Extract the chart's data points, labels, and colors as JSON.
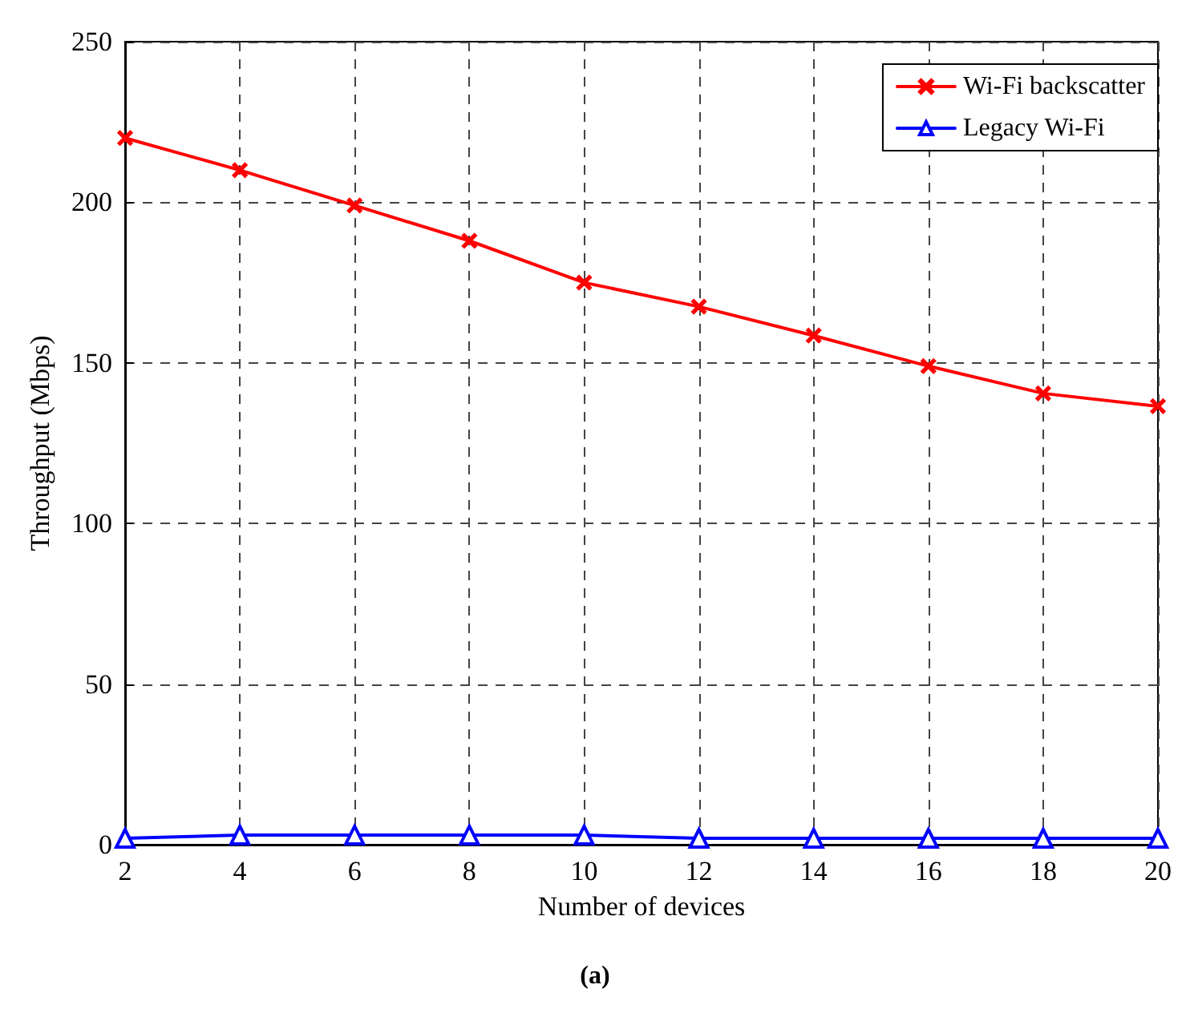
{
  "chart_data": {
    "type": "line",
    "xlabel": "Number of devices",
    "ylabel": "Throughput (Mbps)",
    "annotations": [
      "(a)"
    ],
    "x": [
      2,
      4,
      6,
      8,
      10,
      12,
      14,
      16,
      18,
      20
    ],
    "series": [
      {
        "name": "Wi-Fi backscatter",
        "color": "#ff0000",
        "marker": "cross",
        "values": [
          220,
          210,
          199,
          188,
          175,
          167.5,
          158.5,
          149,
          140.5,
          136.5
        ]
      },
      {
        "name": "Legacy Wi-Fi",
        "color": "#0000ff",
        "marker": "triangle",
        "values": [
          2,
          3,
          3,
          3,
          3,
          2,
          2,
          2,
          2,
          2
        ]
      }
    ],
    "xlim": [
      2,
      20
    ],
    "xticks": [
      2,
      4,
      6,
      8,
      10,
      12,
      14,
      16,
      18,
      20
    ],
    "ylim": [
      0,
      250
    ],
    "yticks": [
      0,
      50,
      100,
      150,
      200,
      250
    ],
    "grid": true,
    "legend": "top right",
    "line_style": "solid"
  }
}
